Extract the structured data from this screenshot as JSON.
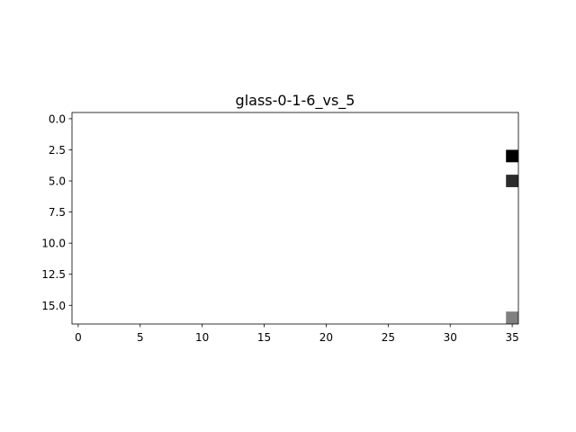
{
  "chart_data": {
    "type": "heatmap",
    "title": "glass-0-1-6_vs_5",
    "xlabel": "",
    "ylabel": "",
    "colormap": "gray-reversed",
    "x_range": [
      -0.5,
      35.5
    ],
    "y_range": [
      16.5,
      -0.5
    ],
    "x_ticks": [
      0,
      5,
      10,
      15,
      20,
      25,
      30,
      35
    ],
    "x_tick_labels": [
      "0",
      "5",
      "10",
      "15",
      "20",
      "25",
      "30",
      "35"
    ],
    "y_ticks": [
      0.0,
      2.5,
      5.0,
      7.5,
      10.0,
      12.5,
      15.0
    ],
    "y_tick_labels": [
      "0.0",
      "2.5",
      "5.0",
      "7.5",
      "10.0",
      "12.5",
      "15.0"
    ],
    "background_value": 0,
    "cells": [
      {
        "x": 35,
        "y": 3,
        "value": 1.0,
        "color": "#000000"
      },
      {
        "x": 35,
        "y": 5,
        "value": 0.85,
        "color": "#2b2b2b"
      },
      {
        "x": 35,
        "y": 16,
        "value": 0.5,
        "color": "#808080"
      }
    ]
  }
}
